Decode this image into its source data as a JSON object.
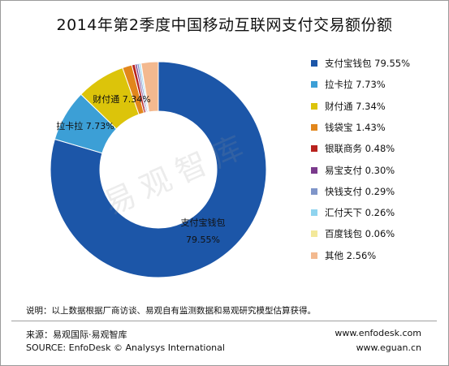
{
  "title": "2014年第2季度中国移动互联网支付交易额份额",
  "watermark": "易观智库",
  "chart_data": {
    "type": "pie",
    "style": "donut",
    "title": "2014年第2季度中国移动互联网支付交易额份额",
    "slices": [
      {
        "name": "支付宝钱包",
        "value": 79.55,
        "legend_label": "支付宝钱包 79.55%",
        "chart_label_line1": "支付宝钱包",
        "chart_label_line2": "79.55%",
        "color": "#1c56a8"
      },
      {
        "name": "拉卡拉",
        "value": 7.73,
        "legend_label": "拉卡拉 7.73%",
        "chart_label_line1": "拉卡拉 7.73%",
        "chart_label_line2": "",
        "color": "#3c9fd6"
      },
      {
        "name": "财付通",
        "value": 7.34,
        "legend_label": "财付通 7.34%",
        "chart_label_line1": "财付通 7.34%",
        "chart_label_line2": "",
        "color": "#dcc40a"
      },
      {
        "name": "钱袋宝",
        "value": 1.43,
        "legend_label": "钱袋宝 1.43%",
        "color": "#e2861b"
      },
      {
        "name": "银联商务",
        "value": 0.48,
        "legend_label": "银联商务 0.48%",
        "color": "#b8221e"
      },
      {
        "name": "易宝支付",
        "value": 0.3,
        "legend_label": "易宝支付 0.30%",
        "color": "#7b3a8c"
      },
      {
        "name": "快钱支付",
        "value": 0.29,
        "legend_label": "快钱支付 0.29%",
        "color": "#7f95c9"
      },
      {
        "name": "汇付天下",
        "value": 0.26,
        "legend_label": "汇付天下 0.26%",
        "color": "#8fd4ef"
      },
      {
        "name": "百度钱包",
        "value": 0.06,
        "legend_label": "百度钱包 0.06%",
        "color": "#f3e89a"
      },
      {
        "name": "其他",
        "value": 2.56,
        "legend_label": "其他 2.56%",
        "color": "#f3b98f"
      }
    ],
    "legend_position": "right"
  },
  "note": "说明：以上数据根据厂商访谈、易观自有监测数据和易观研究模型估算获得。",
  "source_cn": "来源：易观国际·易观智库",
  "source_en": "SOURCE: EnfoDesk © Analysys International",
  "url1": "www.enfodesk.com",
  "url2": "www.eguan.cn"
}
